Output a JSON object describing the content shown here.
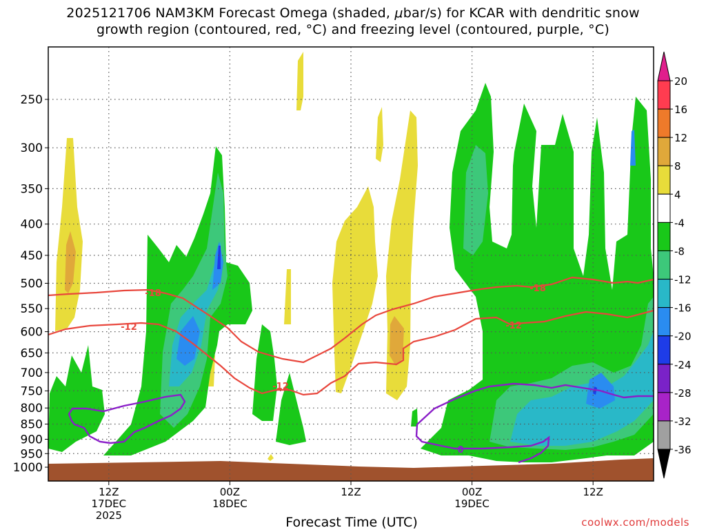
{
  "title_line1": "2025121706 NAM3KM Forecast Omega (shaded, ",
  "title_mu": "μ",
  "title_line1_tail": "bar/s) for KCAR with dendritic snow",
  "title_line2": "growth region (contoured, red, °C) and freezing level (contoured, purple, °C)",
  "credit": "coolwx.com/models",
  "chart_data": {
    "type": "heatmap",
    "xlabel": "Forecast Time (UTC)",
    "ylabel": "",
    "y_axis": {
      "ticks": [
        250,
        300,
        350,
        400,
        450,
        500,
        550,
        600,
        650,
        700,
        750,
        800,
        850,
        900,
        950,
        1000
      ],
      "scale": "pressure (log)",
      "range": [
        190,
        1020
      ],
      "inverted": true
    },
    "x_axis": {
      "range_hours": [
        0,
        60
      ],
      "ticks": [
        {
          "hour": 6,
          "lines": [
            "12Z",
            "17DEC",
            "2025"
          ]
        },
        {
          "hour": 18,
          "lines": [
            "00Z",
            "18DEC"
          ]
        },
        {
          "hour": 30,
          "lines": [
            "12Z"
          ]
        },
        {
          "hour": 42,
          "lines": [
            "00Z",
            "19DEC"
          ]
        },
        {
          "hour": 54,
          "lines": [
            "12Z"
          ]
        }
      ]
    },
    "grid": true,
    "colorbar": {
      "labels": [
        "20",
        "16",
        "12",
        "8",
        "4",
        "-4",
        "-8",
        "-12",
        "-16",
        "-20",
        "-24",
        "-28",
        "-32",
        "-36"
      ],
      "colors": [
        "#ff3c50",
        "#ee7a2a",
        "#e0a83a",
        "#e8dc3a",
        "#ffffff",
        "#19c819",
        "#3dc87a",
        "#29b8c8",
        "#2a8cf0",
        "#1e3ce8",
        "#7a22c8",
        "#a823c8",
        "#a0a0a0"
      ],
      "top_arrow": "#e01e8c",
      "bottom_arrow": "#000000"
    },
    "contours": {
      "dgz_labels": [
        "-18",
        "-12",
        "-12",
        "-12",
        "-18"
      ],
      "freezing_labels": [
        "0"
      ],
      "dgz_color": "#e8463c",
      "freezing_color": "#8a1ec8"
    },
    "terrain_color": "#a0522d"
  }
}
